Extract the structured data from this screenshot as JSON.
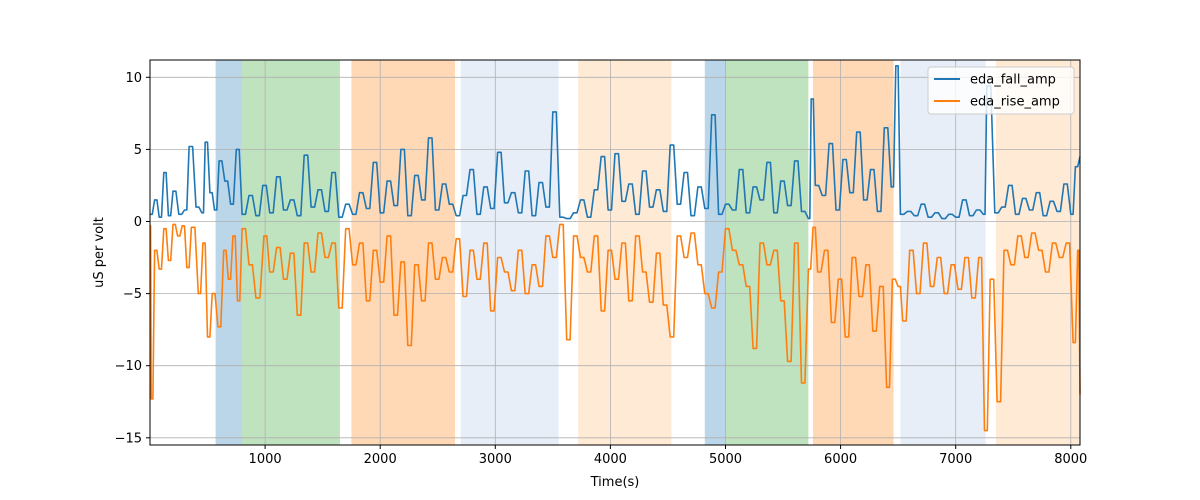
{
  "chart_data": {
    "type": "line",
    "title": "",
    "xlabel": "Time(s)",
    "ylabel": "uS per volt",
    "xlim": [
      0,
      8080
    ],
    "ylim": [
      -15.5,
      11.2
    ],
    "xticks": [
      1000,
      2000,
      3000,
      4000,
      5000,
      6000,
      7000,
      8000
    ],
    "yticks": [
      -15,
      -10,
      -5,
      0,
      5,
      10
    ],
    "grid": true,
    "legend_position": "top-right",
    "bands": [
      {
        "x0": 570,
        "x1": 800,
        "color": "#1f77b4",
        "opacity": 0.3
      },
      {
        "x0": 800,
        "x1": 1650,
        "color": "#2ca02c",
        "opacity": 0.3
      },
      {
        "x0": 1750,
        "x1": 2650,
        "color": "#ff7f0e",
        "opacity": 0.3
      },
      {
        "x0": 2700,
        "x1": 3550,
        "color": "#aec7e8",
        "opacity": 0.3
      },
      {
        "x0": 3720,
        "x1": 4530,
        "color": "#ffbb78",
        "opacity": 0.3
      },
      {
        "x0": 4820,
        "x1": 5000,
        "color": "#1f77b4",
        "opacity": 0.3
      },
      {
        "x0": 5000,
        "x1": 5720,
        "color": "#2ca02c",
        "opacity": 0.3
      },
      {
        "x0": 5760,
        "x1": 6460,
        "color": "#ff7f0e",
        "opacity": 0.3
      },
      {
        "x0": 6520,
        "x1": 7260,
        "color": "#aec7e8",
        "opacity": 0.3
      },
      {
        "x0": 7350,
        "x1": 8080,
        "color": "#ffbb78",
        "opacity": 0.3
      }
    ],
    "series": [
      {
        "name": "eda_fall_amp",
        "color": "#1f77b4",
        "x": [
          0,
          40,
          80,
          120,
          160,
          200,
          250,
          300,
          340,
          400,
          450,
          480,
          520,
          560,
          600,
          650,
          700,
          750,
          800,
          860,
          920,
          980,
          1040,
          1100,
          1160,
          1220,
          1280,
          1340,
          1400,
          1460,
          1520,
          1580,
          1640,
          1700,
          1760,
          1820,
          1880,
          1940,
          2000,
          2060,
          2120,
          2180,
          2240,
          2300,
          2360,
          2420,
          2480,
          2540,
          2600,
          2660,
          2720,
          2780,
          2840,
          2900,
          2960,
          3020,
          3080,
          3140,
          3200,
          3260,
          3320,
          3380,
          3440,
          3500,
          3560,
          3620,
          3680,
          3740,
          3800,
          3860,
          3920,
          3980,
          4040,
          4100,
          4160,
          4220,
          4280,
          4340,
          4400,
          4460,
          4520,
          4580,
          4640,
          4700,
          4760,
          4820,
          4880,
          4940,
          5000,
          5060,
          5120,
          5180,
          5240,
          5300,
          5360,
          5420,
          5480,
          5540,
          5600,
          5660,
          5720,
          5745,
          5780,
          5840,
          5900,
          5960,
          6020,
          6080,
          6140,
          6200,
          6260,
          6320,
          6380,
          6440,
          6480,
          6520,
          6580,
          6640,
          6700,
          6760,
          6820,
          6880,
          6940,
          7000,
          7060,
          7120,
          7180,
          7240,
          7270,
          7340,
          7400,
          7460,
          7520,
          7580,
          7640,
          7700,
          7760,
          7820,
          7880,
          7940,
          8000,
          8040,
          8080
        ],
        "values": [
          0.5,
          1.5,
          0.3,
          3.4,
          0.4,
          2.1,
          0.5,
          0.8,
          5.2,
          1.0,
          0.6,
          5.5,
          2.0,
          0.8,
          4.2,
          2.8,
          1.2,
          5.0,
          0.5,
          1.8,
          0.4,
          2.5,
          0.6,
          3.1,
          0.8,
          1.5,
          0.4,
          4.6,
          1.0,
          2.2,
          0.7,
          3.4,
          0.3,
          1.2,
          0.5,
          2.0,
          0.9,
          4.1,
          0.6,
          2.8,
          1.1,
          5.0,
          0.4,
          3.2,
          1.5,
          5.8,
          0.8,
          2.6,
          1.2,
          0.4,
          1.8,
          3.6,
          0.5,
          2.4,
          0.9,
          4.8,
          1.3,
          2.0,
          0.6,
          3.5,
          0.4,
          2.7,
          1.0,
          7.6,
          0.3,
          0.2,
          0.6,
          1.5,
          0.3,
          2.2,
          4.5,
          0.8,
          4.7,
          1.4,
          2.6,
          0.5,
          3.5,
          1.0,
          2.2,
          0.7,
          5.3,
          1.2,
          3.4,
          0.4,
          2.4,
          0.9,
          7.4,
          0.5,
          1.2,
          0.8,
          3.6,
          0.6,
          2.4,
          1.5,
          4.1,
          0.6,
          2.8,
          1.1,
          4.2,
          0.7,
          0.2,
          8.5,
          2.5,
          1.8,
          5.4,
          0.8,
          4.3,
          2.0,
          6.2,
          1.5,
          3.6,
          0.7,
          6.5,
          2.4,
          10.8,
          0.5,
          0.7,
          0.4,
          1.2,
          0.3,
          0.6,
          0.2,
          0.5,
          0.3,
          1.5,
          0.4,
          0.8,
          0.5,
          9.4,
          0.6,
          1.0,
          2.5,
          0.5,
          1.6,
          0.8,
          2.0,
          0.4,
          1.4,
          0.7,
          2.6,
          0.5,
          3.8,
          4.5
        ]
      },
      {
        "name": "eda_rise_amp",
        "color": "#ff7f0e",
        "x": [
          0,
          10,
          40,
          80,
          120,
          160,
          200,
          240,
          280,
          320,
          360,
          420,
          460,
          500,
          540,
          590,
          640,
          680,
          720,
          760,
          800,
          860,
          920,
          990,
          1040,
          1100,
          1160,
          1220,
          1280,
          1340,
          1400,
          1460,
          1520,
          1580,
          1640,
          1700,
          1760,
          1820,
          1880,
          1940,
          2000,
          2060,
          2120,
          2180,
          2240,
          2300,
          2360,
          2420,
          2480,
          2540,
          2600,
          2660,
          2720,
          2780,
          2840,
          2900,
          2960,
          3020,
          3080,
          3140,
          3200,
          3260,
          3320,
          3380,
          3440,
          3500,
          3560,
          3620,
          3680,
          3740,
          3800,
          3860,
          3920,
          3980,
          4040,
          4100,
          4160,
          4220,
          4280,
          4340,
          4400,
          4460,
          4520,
          4580,
          4640,
          4700,
          4760,
          4820,
          4880,
          4940,
          5000,
          5060,
          5120,
          5180,
          5240,
          5300,
          5360,
          5420,
          5480,
          5540,
          5600,
          5660,
          5720,
          5760,
          5800,
          5860,
          5920,
          5980,
          6040,
          6100,
          6160,
          6220,
          6280,
          6340,
          6400,
          6450,
          6500,
          6540,
          6600,
          6660,
          6720,
          6780,
          6840,
          6900,
          6960,
          7020,
          7080,
          7140,
          7200,
          7250,
          7300,
          7360,
          7420,
          7480,
          7540,
          7600,
          7660,
          7720,
          7780,
          7840,
          7900,
          7960,
          8020,
          8060,
          8080
        ],
        "values": [
          -0.3,
          -12.3,
          -2.0,
          -3.3,
          -0.5,
          -2.7,
          -0.2,
          -1.0,
          -0.3,
          -3.2,
          -0.4,
          -5.0,
          -1.5,
          -8.0,
          -5.0,
          -7.3,
          -2.0,
          -4.0,
          -1.0,
          -5.5,
          -0.5,
          -3.0,
          -5.3,
          -1.0,
          -3.5,
          -1.8,
          -4.0,
          -2.2,
          -6.5,
          -1.5,
          -3.5,
          -0.8,
          -2.5,
          -1.5,
          -6.0,
          -0.5,
          -3.0,
          -1.5,
          -5.5,
          -2.0,
          -4.2,
          -1.0,
          -6.5,
          -2.8,
          -8.6,
          -3.0,
          -5.5,
          -1.5,
          -4.0,
          -2.5,
          -3.5,
          -1.2,
          -5.2,
          -2.0,
          -4.0,
          -1.5,
          -6.2,
          -2.5,
          -3.5,
          -4.8,
          -2.0,
          -5.0,
          -3.0,
          -4.5,
          -1.0,
          -2.5,
          -0.2,
          -8.2,
          -1.0,
          -2.5,
          -3.5,
          -1.0,
          -6.2,
          -2.0,
          -4.0,
          -1.5,
          -5.5,
          -1.0,
          -3.5,
          -5.6,
          -2.2,
          -5.8,
          -8.0,
          -1.0,
          -2.5,
          -0.8,
          -3.0,
          -5.0,
          -6.0,
          -3.5,
          -0.5,
          -2.0,
          -3.0,
          -4.5,
          -8.8,
          -1.5,
          -3.0,
          -2.0,
          -5.5,
          -9.7,
          -1.5,
          -11.2,
          -3.3,
          -0.4,
          -3.5,
          -2.0,
          -7.0,
          -4.0,
          -8.0,
          -2.5,
          -5.2,
          -3.0,
          -7.6,
          -4.5,
          -11.5,
          -4.0,
          -4.5,
          -6.9,
          -2.0,
          -5.0,
          -1.5,
          -4.5,
          -2.5,
          -5.0,
          -3.0,
          -4.7,
          -2.5,
          -5.3,
          -2.5,
          -14.5,
          -4.0,
          -12.5,
          -2.0,
          -3.0,
          -1.0,
          -2.5,
          -0.8,
          -2.0,
          -3.5,
          -1.5,
          -2.5,
          -1.5,
          -8.4,
          -2.0,
          -12.0
        ]
      }
    ]
  }
}
